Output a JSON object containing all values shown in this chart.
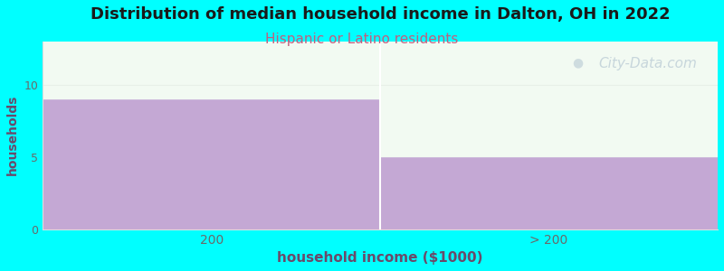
{
  "title": "Distribution of median household income in Dalton, OH in 2022",
  "subtitle": "Hispanic or Latino residents",
  "xlabel": "household income ($1000)",
  "ylabel": "households",
  "categories": [
    "200",
    "> 200"
  ],
  "values": [
    9,
    5
  ],
  "bar_color": "#c4a8d4",
  "bar_edge_color": "#ffffff",
  "background_color": "#00ffff",
  "plot_bg_color_top": "#f5faf5",
  "plot_bg_color_bottom": "#f0f8f0",
  "title_fontsize": 13,
  "title_color": "#1a1a1a",
  "subtitle_fontsize": 11,
  "subtitle_color": "#c06080",
  "axis_label_color": "#6a4a6a",
  "tick_label_color": "#6a6a6a",
  "ylim": [
    0,
    13
  ],
  "yticks": [
    0,
    5,
    10
  ],
  "watermark": "City-Data.com",
  "watermark_color": "#c0d0d8",
  "watermark_fontsize": 11
}
